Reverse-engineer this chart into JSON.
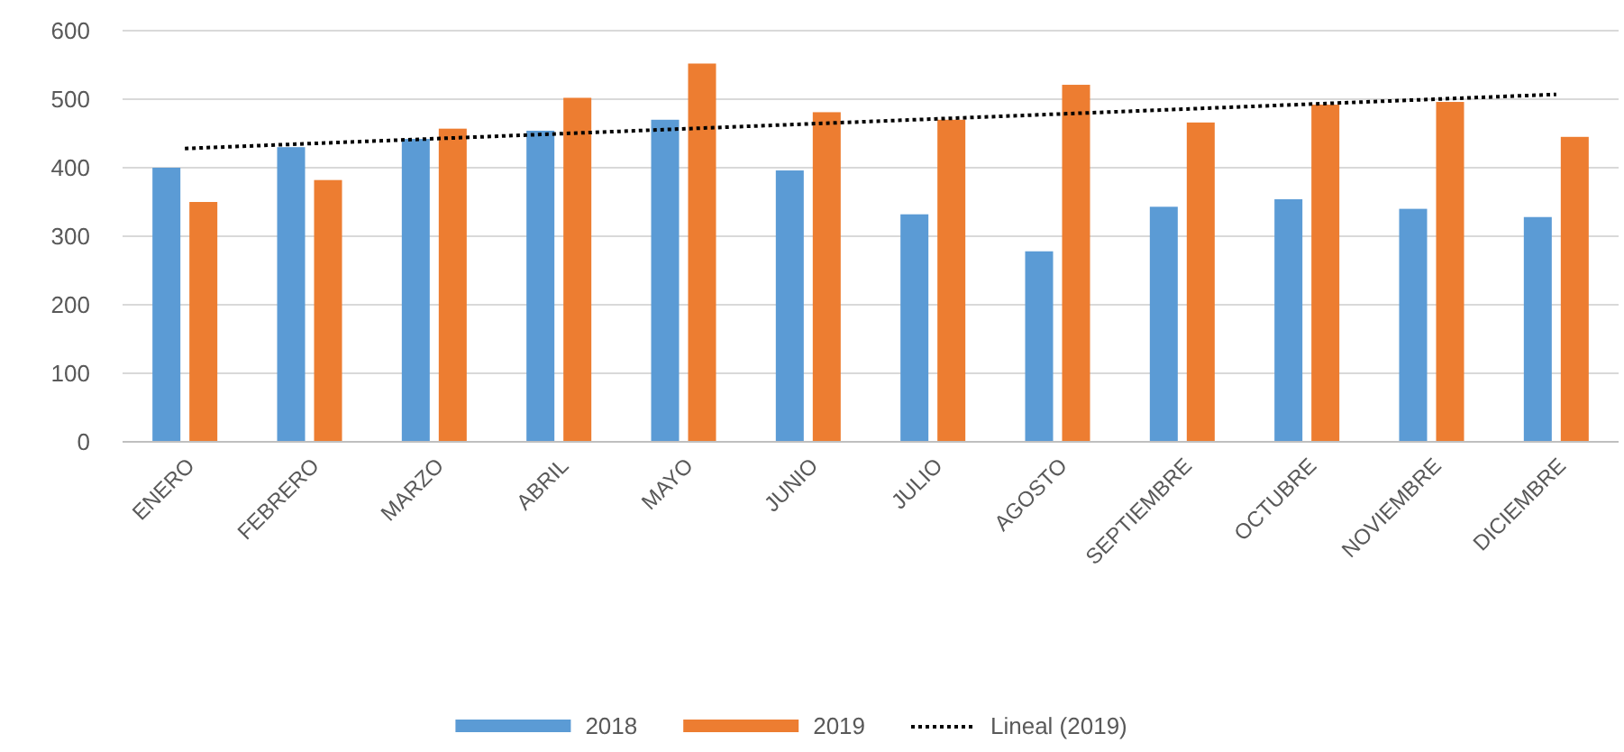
{
  "chart_data": {
    "type": "bar",
    "categories": [
      "ENERO",
      "FEBRERO",
      "MARZO",
      "ABRIL",
      "MAYO",
      "JUNIO",
      "JULIO",
      "AGOSTO",
      "SEPTIEMBRE",
      "OCTUBRE",
      "NOVIEMBRE",
      "DICIEMBRE"
    ],
    "series": [
      {
        "name": "2018",
        "color": "#5b9bd5",
        "values": [
          400,
          430,
          442,
          454,
          470,
          396,
          332,
          278,
          343,
          354,
          340,
          328
        ]
      },
      {
        "name": "2019",
        "color": "#ed7d31",
        "values": [
          350,
          382,
          457,
          502,
          552,
          481,
          470,
          521,
          466,
          492,
          496,
          445
        ]
      },
      {
        "name": "Lineal (2019)",
        "type": "line",
        "color": "#000000",
        "line_style": "dotted",
        "x": [
          "ENERO",
          "DICIEMBRE"
        ],
        "values": [
          428,
          507
        ]
      }
    ],
    "ylim": [
      0,
      600
    ],
    "yticks": [
      0,
      100,
      200,
      300,
      400,
      500,
      600
    ],
    "grid": "y",
    "legend": "bottom"
  }
}
